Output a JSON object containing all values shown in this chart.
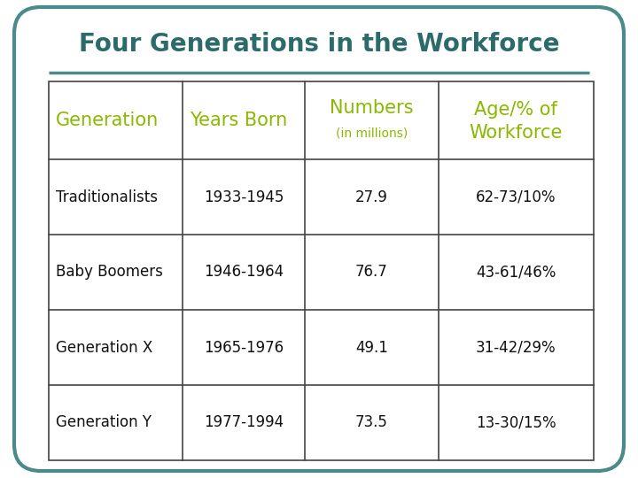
{
  "title": "Four Generations in the Workforce",
  "title_color": "#2d6b6b",
  "title_fontsize": 20,
  "background_color": "#ffffff",
  "border_color": "#4a8a8a",
  "separator_color": "#4a8a8a",
  "header_main": [
    "Generation",
    "Years Born",
    "Numbers",
    "Age/% of\nWorkforce"
  ],
  "header_sub": [
    "",
    "",
    "(in millions)",
    ""
  ],
  "header_color": "#8ab800",
  "header_fontsize": 15,
  "rows": [
    [
      "Traditionalists",
      "1933-1945",
      "27.9",
      "62-73/10%"
    ],
    [
      "Baby Boomers",
      "1946-1964",
      "76.7",
      "43-61/46%"
    ],
    [
      "Generation X",
      "1965-1976",
      "49.1",
      "31-42/29%"
    ],
    [
      "Generation Y",
      "1977-1994",
      "73.5",
      "13-30/15%"
    ]
  ],
  "row_fontsize": 12,
  "row_text_color": "#111111",
  "line_color": "#444444",
  "line_width": 1.2,
  "fig_bg": "#ffffff"
}
